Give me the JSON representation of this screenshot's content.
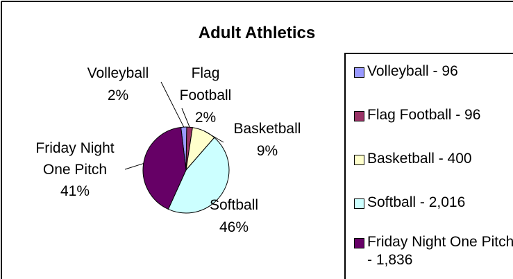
{
  "chart_data": {
    "type": "pie",
    "title": "Adult Athletics",
    "slices": [
      {
        "name": "Volleyball",
        "value": 96,
        "percent_label": "2%",
        "legend": "Volleyball - 96",
        "color": "#9999ff"
      },
      {
        "name": "Flag Football",
        "value": 96,
        "percent_label": "2%",
        "legend": "Flag Football - 96",
        "color": "#993366"
      },
      {
        "name": "Basketball",
        "value": 400,
        "percent_label": "9%",
        "legend": "Basketball - 400",
        "color": "#ffffcc"
      },
      {
        "name": "Softball",
        "value": 2016,
        "percent_label": "46%",
        "legend": "Softball - 2,016",
        "color": "#ccffff"
      },
      {
        "name": "Friday Night One Pitch",
        "value": 1836,
        "percent_label": "41%",
        "legend": "Friday Night One Pitch - 1,836",
        "color": "#660066"
      }
    ],
    "slice_labels": [
      {
        "lines": [
          "Volleyball",
          "2%"
        ]
      },
      {
        "lines": [
          "Flag",
          "Football",
          "2%"
        ]
      },
      {
        "lines": [
          "Basketball",
          "9%"
        ]
      },
      {
        "lines": [
          "Softball",
          "46%"
        ]
      },
      {
        "lines": [
          "Friday Night",
          "One Pitch",
          "41%"
        ]
      }
    ],
    "legend_placement": "right"
  }
}
